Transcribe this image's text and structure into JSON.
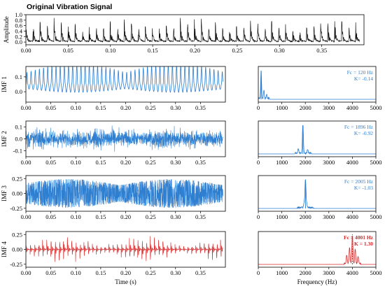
{
  "chart_data": [
    {
      "type": "line",
      "title": "Original Vibration Signal",
      "ylabel": "Amplitude",
      "xlabel": "",
      "xlim": [
        0,
        0.4
      ],
      "ylim": [
        -0.1,
        1.0
      ],
      "xticks": [
        "0.00",
        "0.05",
        "0.10",
        "0.15",
        "0.20",
        "0.25",
        "0.30",
        "0.35"
      ],
      "yticks": [
        "0.0",
        "0.2",
        "0.4",
        "0.6",
        "0.8",
        "1.0"
      ],
      "color": "#000000",
      "series": [
        {
          "x_range": [
            0,
            0.4
          ],
          "y_range": [
            0.0,
            0.95
          ],
          "impulse_period_s": 0.0083
        }
      ]
    },
    {
      "type": "line",
      "ylabel": "IMF 1",
      "xlabel": "",
      "xlim": [
        0,
        0.4
      ],
      "ylim": [
        -0.07,
        0.17
      ],
      "xticks": [
        "0.00",
        "0.05",
        "0.10",
        "0.15",
        "0.20",
        "0.25",
        "0.30",
        "0.35"
      ],
      "yticks": [
        "0.0",
        "0.1"
      ],
      "color": "#2f7fd1",
      "series": [
        {
          "x_range": [
            0,
            0.4
          ],
          "y_range": [
            -0.03,
            0.14
          ],
          "frequency_hz": 120
        }
      ]
    },
    {
      "type": "line",
      "ylabel": "",
      "xlabel": "",
      "xlim": [
        0,
        5000
      ],
      "xticks": [
        "0",
        "1000",
        "2000",
        "3000",
        "4000",
        "5000"
      ],
      "annotation": [
        "Fc = 120 Hz",
        "K= -0.14"
      ],
      "color": "#2f7fd1",
      "series": [
        {
          "peaks_hz": [
            120,
            240,
            360
          ],
          "relative_heights": [
            1.0,
            0.3,
            0.15
          ]
        }
      ]
    },
    {
      "type": "line",
      "ylabel": "IMF 2",
      "xlabel": "",
      "xlim": [
        0,
        0.4
      ],
      "ylim": [
        -0.15,
        0.15
      ],
      "xticks": [
        "0.00",
        "0.05",
        "0.10",
        "0.15",
        "0.20",
        "0.25",
        "0.30",
        "0.35"
      ],
      "yticks": [
        "-0.1",
        "0.0",
        "0.1"
      ],
      "color": "#2f7fd1",
      "series": [
        {
          "x_range": [
            0,
            0.4
          ],
          "y_range": [
            -0.12,
            0.12
          ]
        }
      ]
    },
    {
      "type": "line",
      "ylabel": "",
      "xlabel": "",
      "xlim": [
        0,
        5000
      ],
      "xticks": [
        "0",
        "1000",
        "2000",
        "3000",
        "4000",
        "5000"
      ],
      "annotation": [
        "Fc = 1896 Hz",
        "K= -0.92"
      ],
      "color": "#2f7fd1",
      "series": [
        {
          "peaks_hz": [
            1896,
            1700,
            2100
          ],
          "relative_heights": [
            1.0,
            0.15,
            0.12
          ]
        }
      ]
    },
    {
      "type": "line",
      "ylabel": "IMF 3",
      "xlabel": "",
      "xlim": [
        0,
        0.4
      ],
      "ylim": [
        -0.3,
        0.3
      ],
      "xticks": [
        "0.00",
        "0.05",
        "0.10",
        "0.15",
        "0.20",
        "0.25",
        "0.30",
        "0.35"
      ],
      "yticks": [
        "-0.25",
        "0.00",
        "0.25"
      ],
      "color": "#2f7fd1",
      "series": [
        {
          "x_range": [
            0,
            0.4
          ],
          "y_range": [
            -0.27,
            0.27
          ]
        }
      ]
    },
    {
      "type": "line",
      "ylabel": "",
      "xlabel": "",
      "xlim": [
        0,
        5000
      ],
      "xticks": [
        "0",
        "1000",
        "2000",
        "3000",
        "4000",
        "5000"
      ],
      "annotation": [
        "Fc = 2005 Hz",
        "K= -1.03"
      ],
      "color": "#2f7fd1",
      "series": [
        {
          "peaks_hz": [
            2005,
            1950,
            2050
          ],
          "relative_heights": [
            1.0,
            0.2,
            0.15
          ]
        }
      ]
    },
    {
      "type": "line",
      "ylabel": "IMF 4",
      "xlabel": "Time (s)",
      "xlim": [
        0,
        0.4
      ],
      "ylim": [
        -0.3,
        0.3
      ],
      "xticks": [
        "0.00",
        "0.05",
        "0.10",
        "0.15",
        "0.20",
        "0.25",
        "0.30",
        "0.35"
      ],
      "yticks": [
        "-0.25",
        "0.00",
        "0.25"
      ],
      "color": "#d62728",
      "series": [
        {
          "x_range": [
            0,
            0.4
          ],
          "y_range": [
            -0.27,
            0.27
          ],
          "impulse_period_s": 0.0083
        }
      ]
    },
    {
      "type": "line",
      "ylabel": "",
      "xlabel": "Frequency (Hz)",
      "xlim": [
        0,
        5000
      ],
      "xticks": [
        "0",
        "1000",
        "2000",
        "3000",
        "4000",
        "5000"
      ],
      "annotation": [
        "Fc = 4001 Hz",
        "K = 1.30"
      ],
      "color": "#d62728",
      "series": [
        {
          "peaks_hz": [
            4001,
            3880,
            4120,
            3760,
            4240
          ],
          "relative_heights": [
            1.0,
            0.55,
            0.5,
            0.3,
            0.25
          ]
        }
      ]
    }
  ]
}
